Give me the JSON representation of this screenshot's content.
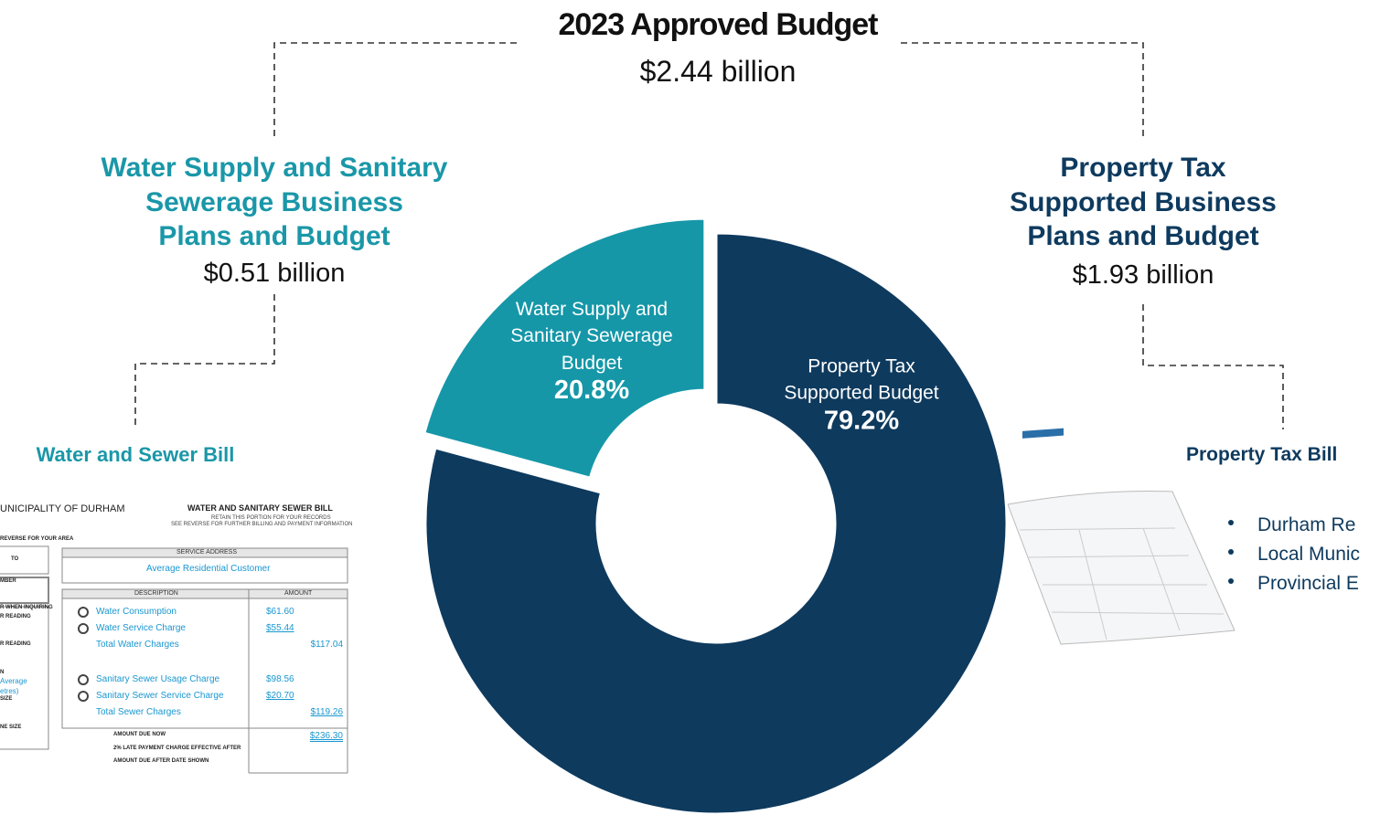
{
  "chart_data": {
    "type": "donut",
    "title": "2023 Approved Budget",
    "subtitle": "$2.44 billion",
    "categories": [
      "Property Tax\nSupported Budget",
      "Water Supply and\nSanitary Sewerage\nBudget"
    ],
    "values": [
      79.2,
      20.8
    ],
    "value_labels": [
      "79.2%",
      "20.8%"
    ],
    "colors": [
      "#0e3a5e",
      "#1597a8"
    ]
  },
  "left": {
    "heading": "Water Supply and Sanitary\nSewerage Business\nPlans and Budget",
    "amount": "$0.51 billion",
    "bill_title": "Water and Sewer Bill"
  },
  "right": {
    "heading": "Property Tax\nSupported Business\nPlans and Budget",
    "amount": "$1.93 billion",
    "bill_title": "Property Tax Bill",
    "bullets": [
      "Durham Re",
      "Local Munic",
      "Provincial E"
    ]
  },
  "bill": {
    "org": "UNICIPALITY OF DURHAM",
    "title": "WATER AND SANITARY SEWER BILL",
    "note1": "RETAIN THIS PORTION FOR YOUR RECORDS",
    "note2": "SEE REVERSE FOR FURTHER BILLING AND PAYMENT INFORMATION",
    "service_header": "SERVICE ADDRESS",
    "customer": "Average Residential Customer",
    "desc_header": "DESCRIPTION",
    "amount_header": "AMOUNT",
    "rows": [
      [
        "Water Consumption",
        "$61.60",
        ""
      ],
      [
        "Water Service Charge",
        "$55.44",
        ""
      ],
      [
        "Total Water Charges",
        "",
        "$117.04"
      ],
      [
        "Sanitary Sewer Usage Charge",
        "$98.56",
        ""
      ],
      [
        "Sanitary Sewer Service Charge",
        "$20.70",
        ""
      ],
      [
        "Total Sewer Charges",
        "",
        "$119.26"
      ]
    ],
    "due_now": "AMOUNT DUE NOW",
    "due_amount": "$236.30",
    "late": "2% LATE PAYMENT CHARGE EFFECTIVE AFTER",
    "after": "AMOUNT DUE AFTER DATE SHOWN",
    "side": [
      "REVERSE FOR YOUR AREA",
      "TO",
      "MBER",
      "R WHEN INQUIRING",
      "R READING",
      "R READING",
      "N",
      "Average",
      "etres)",
      "SIZE",
      "NE SIZE"
    ]
  }
}
